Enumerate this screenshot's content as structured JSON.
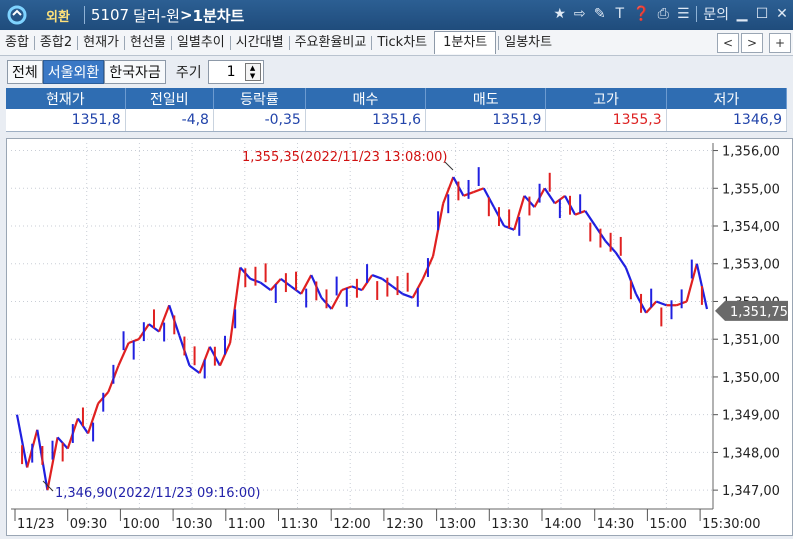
{
  "titlebar": {
    "badge": "외환",
    "code": "5107",
    "name": "달러-원",
    "chart_label": "1분차트",
    "help": "문의"
  },
  "tabs": [
    "종합",
    "종합2",
    "현재가",
    "현선물",
    "일별추이",
    "시간대별",
    "주요환율비교",
    "Tick차트",
    "1분차트",
    "일봉차트"
  ],
  "active_tab": "1분차트",
  "nav": {
    "prev": "<",
    "next": ">",
    "add": "+"
  },
  "filters": {
    "all": "전체",
    "seoul": "서울외환",
    "kftc": "한국자금",
    "period_label": "주기",
    "period_value": "1"
  },
  "quote": {
    "headers": [
      "현재가",
      "전일비",
      "등락률",
      "매수",
      "매도",
      "고가",
      "저가"
    ],
    "values": [
      "1351,8",
      "-4,8",
      "-0,35",
      "1351,6",
      "1351,9",
      "1355,3",
      "1346,9"
    ]
  },
  "colors": {
    "up": "#e02020",
    "down": "#2020e0",
    "header": "#2f6db2",
    "annotation": "#d01010",
    "lastprice": "#6a6a6a"
  },
  "chart_data": {
    "type": "line",
    "xlabel": "",
    "ylabel": "",
    "x_ticks": [
      "11/23",
      "09:30",
      "10:00",
      "10:30",
      "11:00",
      "11:30",
      "12:00",
      "12:30",
      "13:00",
      "13:30",
      "14:00",
      "14:30",
      "15:00",
      "15:30:00"
    ],
    "y_ticks": [
      "1,356,00",
      "1,355,00",
      "1,354,00",
      "1,353,00",
      "1,352,00",
      "1,351,00",
      "1,350,00",
      "1,349,00",
      "1,348,00",
      "1,347,00"
    ],
    "ylim": [
      1346.5,
      1356.2
    ],
    "series": [
      {
        "values": [
          1349.0,
          1347.6,
          1348.6,
          1347.0,
          1348.4,
          1348.1,
          1348.9,
          1348.5,
          1349.3,
          1349.6,
          1350.3,
          1350.9,
          1351.0,
          1351.4,
          1351.2,
          1351.9,
          1351.1,
          1350.3,
          1350.1,
          1350.8,
          1350.3,
          1350.9,
          1352.9,
          1352.6,
          1352.5,
          1352.3,
          1352.6,
          1352.4,
          1352.2,
          1352.7,
          1352.1,
          1351.8,
          1352.3,
          1352.4,
          1352.3,
          1352.7,
          1352.6,
          1352.4,
          1352.2,
          1352.1,
          1352.6,
          1353.2,
          1354.6,
          1355.3,
          1354.8,
          1354.9,
          1355.0,
          1354.5,
          1354.0,
          1353.9,
          1354.8,
          1354.5,
          1355.0,
          1354.6,
          1354.8,
          1354.3,
          1354.4,
          1354.0,
          1353.6,
          1353.3,
          1352.9,
          1352.2,
          1351.7,
          1352.0,
          1351.9,
          1351.9,
          1352.0,
          1353.0,
          1351.8
        ]
      }
    ],
    "annotations": [
      {
        "label": "1,355,35(2022/11/23 13:08:00)",
        "value": 1355.35
      },
      {
        "label": "1,346,90(2022/11/23 09:16:00)",
        "value": 1346.9
      }
    ],
    "last_price_label": "1,351,75",
    "last_price": 1351.75,
    "grid": true,
    "grid_style": "dotted"
  }
}
